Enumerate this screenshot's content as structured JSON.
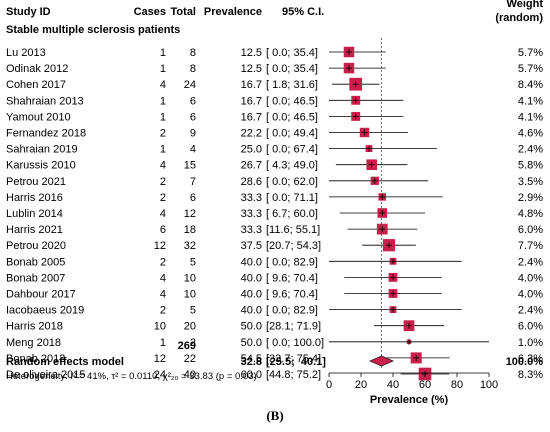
{
  "headers": {
    "study": "Study ID",
    "cases": "Cases",
    "total": "Total",
    "prevalence": "Prevalence",
    "ci": "95% C.I.",
    "weight_line1": "Weight",
    "weight_line2": "(random)"
  },
  "subgroup_title": "Stable multiple sclerosis patients",
  "pooled": {
    "label": "Random effects model",
    "total": "269",
    "prevalence": "32.8",
    "ci": "[25.5;  40.1]",
    "weight": "100.0%",
    "heterogeneity": "Heterogeneity: I² = 41%, τ² = 0.0110, χ²₂₀ = 33.83 (p = 0.03)"
  },
  "caption": "(B)",
  "chart_data": {
    "type": "forest",
    "xlabel": "Prevalence (%)",
    "xlim": [
      0,
      100
    ],
    "xticks": [
      0,
      20,
      40,
      60,
      80,
      100
    ],
    "reference_line": 32.8,
    "marker_color": "#c8204a",
    "studies": [
      {
        "study": "Lu 2013",
        "cases": 1,
        "total": 8,
        "prevalence": 12.5,
        "lower": 0.0,
        "upper": 35.4,
        "weight": 5.7,
        "ci_text": "[ 0.0;  35.4]",
        "weight_text": "5.7%"
      },
      {
        "study": "Odinak 2012",
        "cases": 1,
        "total": 8,
        "prevalence": 12.5,
        "lower": 0.0,
        "upper": 35.4,
        "weight": 5.7,
        "ci_text": "[ 0.0;  35.4]",
        "weight_text": "5.7%"
      },
      {
        "study": "Cohen 2017",
        "cases": 4,
        "total": 24,
        "prevalence": 16.7,
        "lower": 1.8,
        "upper": 31.6,
        "weight": 8.4,
        "ci_text": "[ 1.8;  31.6]",
        "weight_text": "8.4%"
      },
      {
        "study": "Shahraian 2013",
        "cases": 1,
        "total": 6,
        "prevalence": 16.7,
        "lower": 0.0,
        "upper": 46.5,
        "weight": 4.1,
        "ci_text": "[ 0.0;  46.5]",
        "weight_text": "4.1%"
      },
      {
        "study": "Yamout 2010",
        "cases": 1,
        "total": 6,
        "prevalence": 16.7,
        "lower": 0.0,
        "upper": 46.5,
        "weight": 4.1,
        "ci_text": "[ 0.0;  46.5]",
        "weight_text": "4.1%"
      },
      {
        "study": "Fernandez 2018",
        "cases": 2,
        "total": 9,
        "prevalence": 22.2,
        "lower": 0.0,
        "upper": 49.4,
        "weight": 4.6,
        "ci_text": "[ 0.0;  49.4]",
        "weight_text": "4.6%"
      },
      {
        "study": "Sahraian 2019",
        "cases": 1,
        "total": 4,
        "prevalence": 25.0,
        "lower": 0.0,
        "upper": 67.4,
        "weight": 2.4,
        "ci_text": "[ 0.0;  67.4]",
        "weight_text": "2.4%"
      },
      {
        "study": "Karussis 2010",
        "cases": 4,
        "total": 15,
        "prevalence": 26.7,
        "lower": 4.3,
        "upper": 49.0,
        "weight": 5.8,
        "ci_text": "[ 4.3;  49.0]",
        "weight_text": "5.8%"
      },
      {
        "study": "Petrou 2021",
        "cases": 2,
        "total": 7,
        "prevalence": 28.6,
        "lower": 0.0,
        "upper": 62.0,
        "weight": 3.5,
        "ci_text": "[ 0.0;  62.0]",
        "weight_text": "3.5%"
      },
      {
        "study": "Harris 2016",
        "cases": 2,
        "total": 6,
        "prevalence": 33.3,
        "lower": 0.0,
        "upper": 71.1,
        "weight": 2.9,
        "ci_text": "[ 0.0;  71.1]",
        "weight_text": "2.9%"
      },
      {
        "study": "Lublin 2014",
        "cases": 4,
        "total": 12,
        "prevalence": 33.3,
        "lower": 6.7,
        "upper": 60.0,
        "weight": 4.8,
        "ci_text": "[ 6.7;  60.0]",
        "weight_text": "4.8%"
      },
      {
        "study": "Harris 2021",
        "cases": 6,
        "total": 18,
        "prevalence": 33.3,
        "lower": 11.6,
        "upper": 55.1,
        "weight": 6.0,
        "ci_text": "[11.6;  55.1]",
        "weight_text": "6.0%"
      },
      {
        "study": "Petrou 2020",
        "cases": 12,
        "total": 32,
        "prevalence": 37.5,
        "lower": 20.7,
        "upper": 54.3,
        "weight": 7.7,
        "ci_text": "[20.7;  54.3]",
        "weight_text": "7.7%"
      },
      {
        "study": "Bonab 2005",
        "cases": 2,
        "total": 5,
        "prevalence": 40.0,
        "lower": 0.0,
        "upper": 82.9,
        "weight": 2.4,
        "ci_text": "[ 0.0;  82.9]",
        "weight_text": "2.4%"
      },
      {
        "study": "Bonab 2007",
        "cases": 4,
        "total": 10,
        "prevalence": 40.0,
        "lower": 9.6,
        "upper": 70.4,
        "weight": 4.0,
        "ci_text": "[ 9.6;  70.4]",
        "weight_text": "4.0%"
      },
      {
        "study": "Dahbour 2017",
        "cases": 4,
        "total": 10,
        "prevalence": 40.0,
        "lower": 9.6,
        "upper": 70.4,
        "weight": 4.0,
        "ci_text": "[ 9.6;  70.4]",
        "weight_text": "4.0%"
      },
      {
        "study": "Iacobaeus 2019",
        "cases": 2,
        "total": 5,
        "prevalence": 40.0,
        "lower": 0.0,
        "upper": 82.9,
        "weight": 2.4,
        "ci_text": "[ 0.0;  82.9]",
        "weight_text": "2.4%"
      },
      {
        "study": "Harris 2018",
        "cases": 10,
        "total": 20,
        "prevalence": 50.0,
        "lower": 28.1,
        "upper": 71.9,
        "weight": 6.0,
        "ci_text": "[28.1;  71.9]",
        "weight_text": "6.0%"
      },
      {
        "study": "Meng 2018",
        "cases": 1,
        "total": 2,
        "prevalence": 50.0,
        "lower": 0.0,
        "upper": 100.0,
        "weight": 1.0,
        "ci_text": "[ 0.0; 100.0]",
        "weight_text": "1.0%"
      },
      {
        "study": "Bonab 2012",
        "cases": 12,
        "total": 22,
        "prevalence": 54.5,
        "lower": 33.7,
        "upper": 75.4,
        "weight": 6.3,
        "ci_text": "[33.7;  75.4]",
        "weight_text": "6.3%"
      },
      {
        "study": "De oliveira 2015",
        "cases": 24,
        "total": 40,
        "prevalence": 60.0,
        "lower": 44.8,
        "upper": 75.2,
        "weight": 8.3,
        "ci_text": "[44.8;  75.2]",
        "weight_text": "8.3%"
      }
    ],
    "pooled": {
      "prevalence": 32.8,
      "lower": 25.5,
      "upper": 40.1
    }
  }
}
